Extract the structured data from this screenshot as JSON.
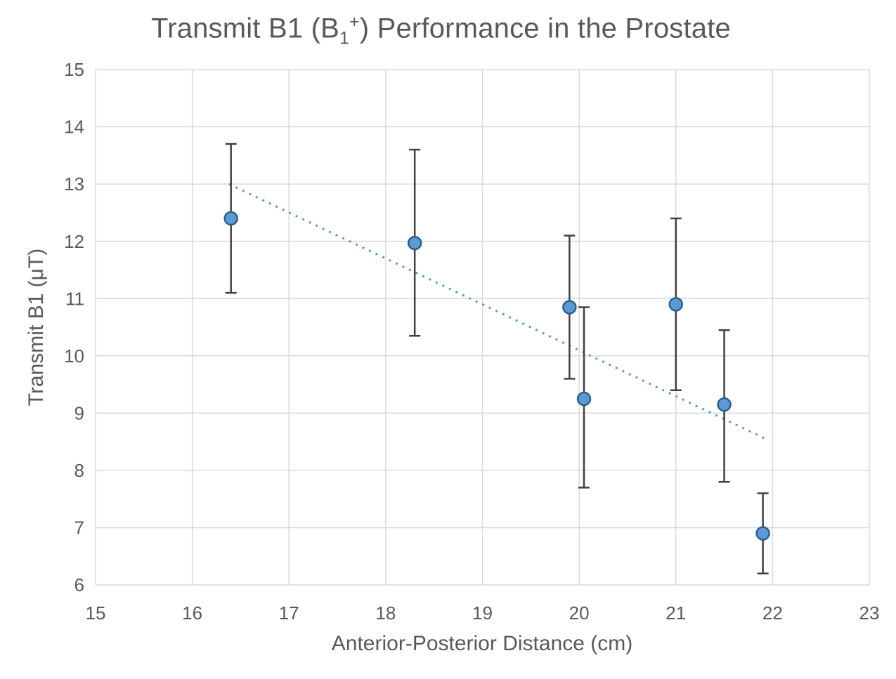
{
  "chart_data": {
    "type": "scatter",
    "title": {
      "part1": "Transmit B1 (B",
      "sub": "1",
      "sup": "+",
      "part2": ") Performance in the Prostate",
      "full_text": "Transmit B1 (B1+) Performance in the Prostate"
    },
    "xlabel": "Anterior-Posterior Distance (cm)",
    "ylabel": "Transmit B1 (μT)",
    "xlim": [
      15,
      23
    ],
    "ylim": [
      6,
      15
    ],
    "x_ticks": [
      15,
      16,
      17,
      18,
      19,
      20,
      21,
      22,
      23
    ],
    "y_ticks": [
      6,
      7,
      8,
      9,
      10,
      11,
      12,
      13,
      14,
      15
    ],
    "grid": true,
    "legend": "none",
    "points": [
      {
        "x": 16.4,
        "y": 12.4,
        "y_err_low": 11.1,
        "y_err_high": 13.7
      },
      {
        "x": 18.3,
        "y": 11.97,
        "y_err_low": 10.35,
        "y_err_high": 13.6
      },
      {
        "x": 19.9,
        "y": 10.85,
        "y_err_low": 9.6,
        "y_err_high": 12.1
      },
      {
        "x": 20.05,
        "y": 9.25,
        "y_err_low": 7.7,
        "y_err_high": 10.85
      },
      {
        "x": 21.0,
        "y": 10.9,
        "y_err_low": 9.4,
        "y_err_high": 12.4
      },
      {
        "x": 21.5,
        "y": 9.15,
        "y_err_low": 7.8,
        "y_err_high": 10.45
      },
      {
        "x": 21.9,
        "y": 6.9,
        "y_err_low": 6.2,
        "y_err_high": 7.6
      }
    ],
    "trendline": {
      "style": "dotted",
      "x1": 16.38,
      "y1": 13.0,
      "x2": 21.93,
      "y2": 8.55
    },
    "colors": {
      "marker_fill": "#5B9BD5",
      "marker_stroke": "#2E5F8A",
      "trendline": "#5B9BD5",
      "error_bar": "#404040",
      "gridline": "#D9D9D9",
      "text": "#595959",
      "background": "#FFFFFF"
    }
  }
}
